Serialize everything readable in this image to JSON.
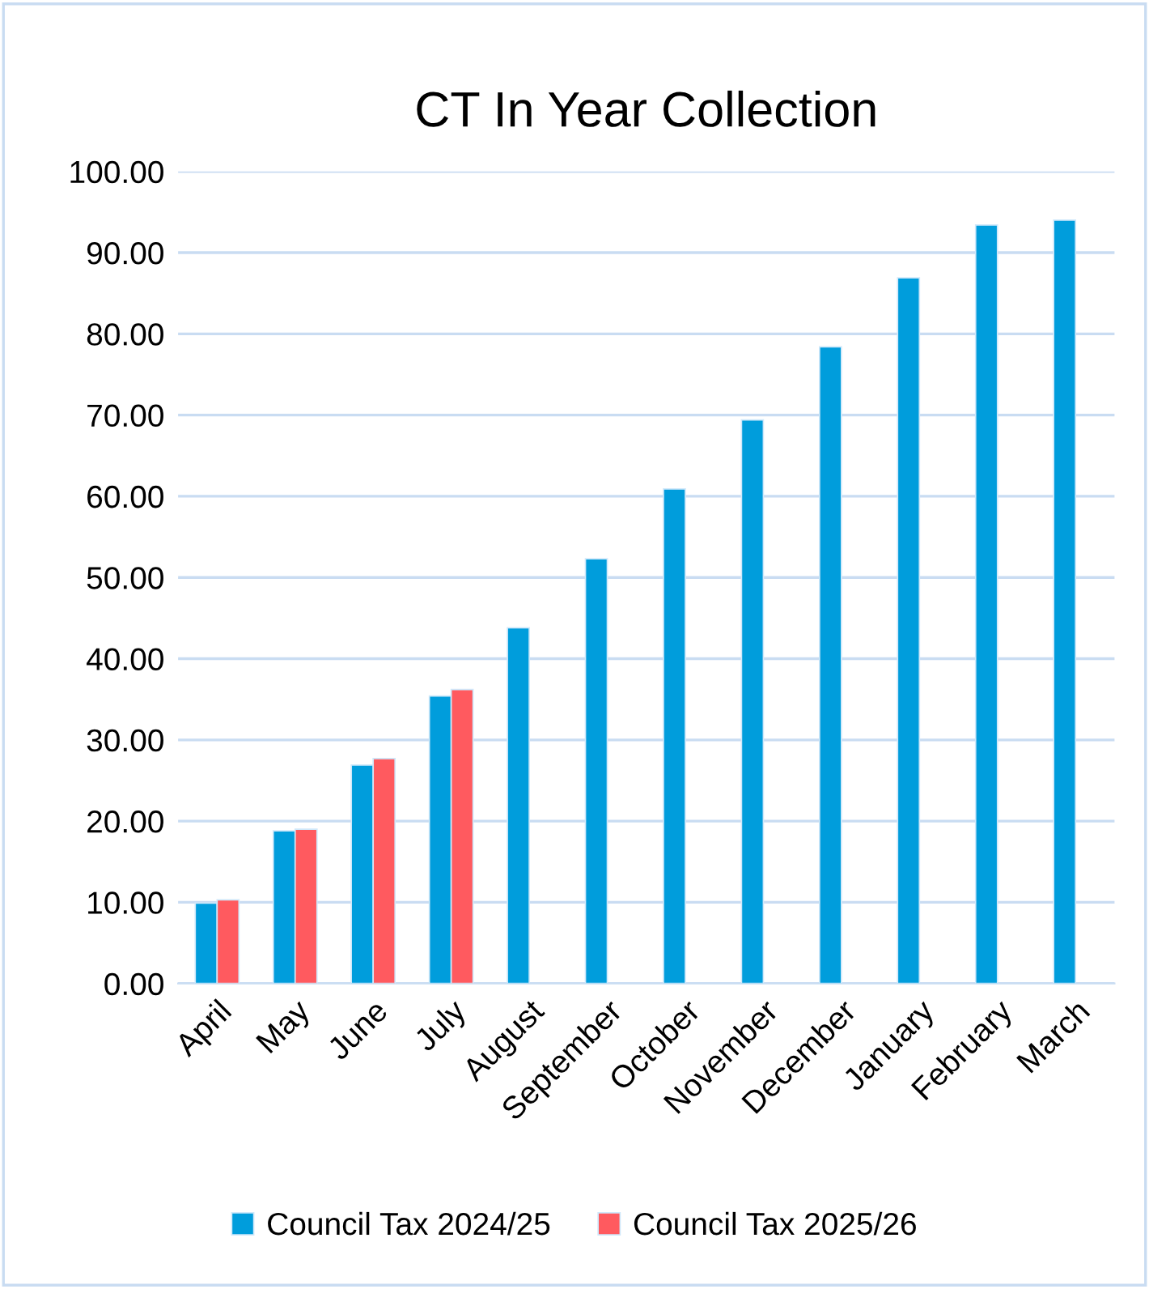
{
  "chart_data": {
    "type": "bar",
    "title": "CT In Year Collection",
    "categories": [
      "April",
      "May",
      "June",
      "July",
      "August",
      "September",
      "October",
      "November",
      "December",
      "January",
      "February",
      "March"
    ],
    "series": [
      {
        "name": "Council Tax 2024/25",
        "color": "#009ddc",
        "values": [
          9.9,
          18.8,
          26.9,
          35.4,
          43.8,
          52.3,
          60.9,
          69.4,
          78.4,
          86.9,
          93.4,
          94.0
        ]
      },
      {
        "name": "Council Tax 2025/26",
        "color": "#ff5a5f",
        "values": [
          10.3,
          19.0,
          27.7,
          36.2,
          null,
          null,
          null,
          null,
          null,
          null,
          null,
          null
        ]
      }
    ],
    "ylim": [
      0,
      100
    ],
    "yticks": [
      {
        "value": 0,
        "label": "0.00"
      },
      {
        "value": 10,
        "label": "10.00"
      },
      {
        "value": 20,
        "label": "20.00"
      },
      {
        "value": 30,
        "label": "30.00"
      },
      {
        "value": 40,
        "label": "40.00"
      },
      {
        "value": 50,
        "label": "50.00"
      },
      {
        "value": 60,
        "label": "60.00"
      },
      {
        "value": 70,
        "label": "70.00"
      },
      {
        "value": 80,
        "label": "80.00"
      },
      {
        "value": 90,
        "label": "90.00"
      },
      {
        "value": 100,
        "label": "100.00"
      }
    ],
    "grid": "y",
    "legend": "bottom"
  }
}
